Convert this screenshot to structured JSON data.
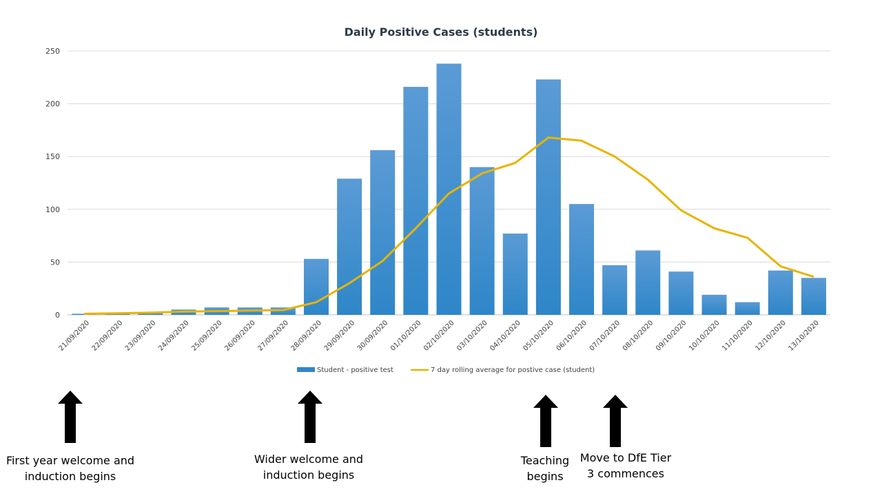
{
  "colors": {
    "bar": "#2e86c8",
    "bar_light": "#5b9bd5",
    "line": "#e7b400",
    "grid": "#d9d9d9",
    "axis": "#bfbfbf"
  },
  "chart_data": {
    "type": "bar",
    "title": "Daily Positive Cases (students)",
    "xlabel": "",
    "ylabel": "",
    "ylim": [
      0,
      250
    ],
    "yticks": [
      0,
      50,
      100,
      150,
      200,
      250
    ],
    "grid": true,
    "legend_position": "bottom",
    "categories": [
      "21/09/2020",
      "22/09/2020",
      "23/09/2020",
      "24/09/2020",
      "25/09/2020",
      "26/09/2020",
      "27/09/2020",
      "28/09/2020",
      "29/09/2020",
      "30/09/2020",
      "01/10/2020",
      "02/10/2020",
      "03/10/2020",
      "04/10/2020",
      "05/10/2020",
      "06/10/2020",
      "07/10/2020",
      "08/10/2020",
      "09/10/2020",
      "10/10/2020",
      "11/10/2020",
      "12/10/2020",
      "13/10/2020"
    ],
    "series": [
      {
        "name": "Student - positive test",
        "type": "bar",
        "values": [
          1,
          1,
          2,
          5,
          7,
          7,
          7,
          53,
          129,
          156,
          216,
          238,
          140,
          77,
          223,
          105,
          47,
          61,
          41,
          19,
          12,
          42,
          35
        ]
      },
      {
        "name": "7 day rolling average for postive case (student)",
        "type": "line",
        "values": [
          1,
          1.5,
          2,
          3,
          3.5,
          4,
          4.5,
          12,
          30,
          51,
          82,
          115,
          134,
          144,
          168,
          165,
          150,
          128,
          99,
          82,
          73,
          46,
          36
        ]
      }
    ]
  },
  "annotations": [
    {
      "text": "First year welcome and\ninduction begins",
      "category": "21/09/2020"
    },
    {
      "text": "Wider welcome and\ninduction begins",
      "category": "28/09/2020"
    },
    {
      "text": "Teaching\nbegins",
      "category": "05/10/2020"
    },
    {
      "text": "Move to DfE Tier\n3  commences",
      "category": "07/10/2020"
    }
  ]
}
